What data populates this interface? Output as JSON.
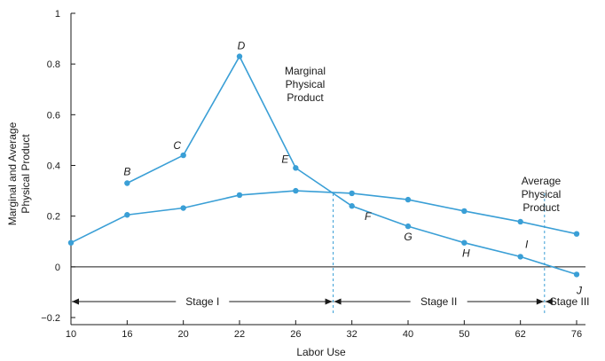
{
  "chart_data": {
    "type": "line",
    "x_tick_labels": [
      "10",
      "16",
      "20",
      "22",
      "26",
      "32",
      "40",
      "50",
      "62",
      "76"
    ],
    "xlabel": "Labor Use",
    "ylabel_lines": [
      "Marginal and Average",
      "Physical Product"
    ],
    "ylim": [
      -0.2,
      1.0
    ],
    "y_tick_labels": [
      "−0.2",
      "0",
      "0.2",
      "0.4",
      "0.6",
      "0.8",
      "1"
    ],
    "y_tick_values": [
      -0.2,
      0,
      0.2,
      0.4,
      0.6,
      0.8,
      1.0
    ],
    "grid": false,
    "color": "#3a9fd6",
    "series": [
      {
        "name_lines": [
          "Marginal",
          "Physical",
          "Product"
        ],
        "x": [
          "16",
          "20",
          "22",
          "26",
          "32",
          "40",
          "50",
          "62",
          "76"
        ],
        "values": [
          0.33,
          0.44,
          0.83,
          0.39,
          0.24,
          0.16,
          0.095,
          0.04,
          -0.03
        ],
        "point_labels": [
          "B",
          "C",
          "D",
          "E",
          "F",
          "G",
          "H",
          "I",
          "J"
        ]
      },
      {
        "name_lines": [
          "Average",
          "Physical",
          "Product"
        ],
        "x": [
          "10",
          "16",
          "20",
          "22",
          "26",
          "32",
          "40",
          "50",
          "62",
          "76"
        ],
        "values": [
          0.095,
          0.205,
          0.232,
          0.283,
          0.3,
          0.29,
          0.265,
          0.22,
          0.178,
          0.13
        ]
      }
    ],
    "stages": [
      {
        "label": "Stage I",
        "start": "10",
        "end": 30
      },
      {
        "label": "Stage II",
        "start": 30,
        "end": 68
      },
      {
        "label": "Stage III",
        "start": 68,
        "end": "76"
      }
    ]
  }
}
